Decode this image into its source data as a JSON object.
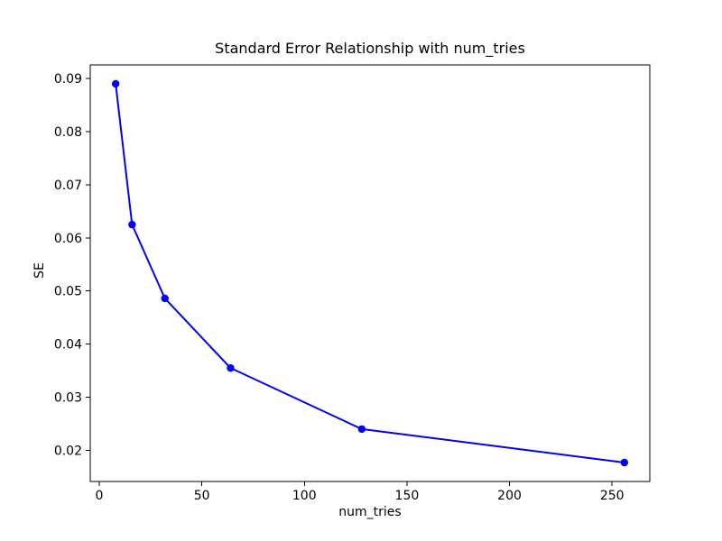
{
  "chart_data": {
    "type": "line",
    "title": "Standard Error Relationship with num_tries",
    "xlabel": "num_tries",
    "ylabel": "SE",
    "x": [
      8,
      16,
      32,
      64,
      128,
      256
    ],
    "series": [
      {
        "name": "SE",
        "color": "#0000ff",
        "marker": "o",
        "values": [
          0.089,
          0.0625,
          0.0486,
          0.0355,
          0.024,
          0.0177
        ]
      }
    ],
    "xlim": [
      -4.4,
      268.4
    ],
    "ylim": [
      0.014135,
      0.092565
    ],
    "xticks": [
      0,
      50,
      100,
      150,
      200,
      250
    ],
    "xtick_labels": [
      "0",
      "50",
      "100",
      "150",
      "200",
      "250"
    ],
    "yticks": [
      0.02,
      0.03,
      0.04,
      0.05,
      0.06,
      0.07,
      0.08,
      0.09
    ],
    "ytick_labels": [
      "0.02",
      "0.03",
      "0.04",
      "0.05",
      "0.06",
      "0.07",
      "0.08",
      "0.09"
    ],
    "grid": false,
    "legend": "none",
    "axis_color": "#000000",
    "text_color": "#000000",
    "background": "#ffffff"
  }
}
